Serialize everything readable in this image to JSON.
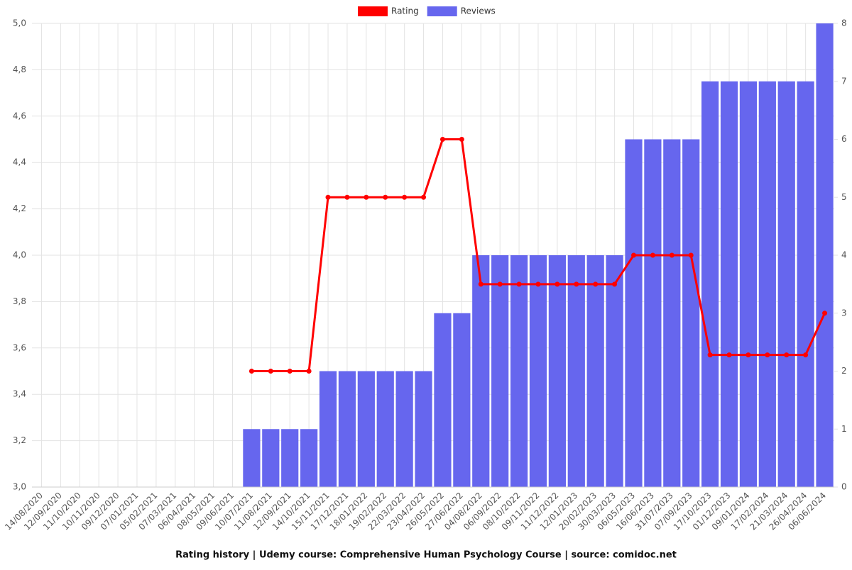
{
  "chart_data": {
    "type": "bar-line",
    "title": "Rating history | Udemy course: Comprehensive Human Psychology Course | source: comidoc.net",
    "categories": [
      "14/08/2020",
      "12/09/2020",
      "11/10/2020",
      "10/11/2020",
      "09/12/2020",
      "07/01/2021",
      "05/02/2021",
      "07/03/2021",
      "06/04/2021",
      "08/05/2021",
      "09/06/2021",
      "10/07/2021",
      "11/08/2021",
      "12/09/2021",
      "14/10/2021",
      "15/11/2021",
      "17/12/2021",
      "18/01/2022",
      "19/02/2022",
      "22/03/2022",
      "23/04/2022",
      "26/05/2022",
      "27/06/2022",
      "04/08/2022",
      "06/09/2022",
      "08/10/2022",
      "09/11/2022",
      "11/12/2022",
      "12/01/2023",
      "20/02/2023",
      "30/03/2023",
      "06/05/2023",
      "16/06/2023",
      "31/07/2023",
      "07/09/2023",
      "17/10/2023",
      "01/12/2023",
      "09/01/2024",
      "17/02/2024",
      "21/03/2024",
      "26/04/2024",
      "06/06/2024"
    ],
    "series": [
      {
        "name": "Rating",
        "color": "#ff0000",
        "kind": "line",
        "values": [
          null,
          null,
          null,
          null,
          null,
          null,
          null,
          null,
          null,
          null,
          null,
          3.5,
          3.5,
          3.5,
          3.5,
          4.25,
          4.25,
          4.25,
          4.25,
          4.25,
          4.25,
          4.5,
          4.5,
          3.875,
          3.875,
          3.875,
          3.875,
          3.875,
          3.875,
          3.875,
          3.875,
          4.0,
          4.0,
          4.0,
          4.0,
          3.57,
          3.57,
          3.57,
          3.57,
          3.57,
          3.57,
          3.75
        ]
      },
      {
        "name": "Reviews",
        "color": "#6666ee",
        "kind": "bar",
        "axis": "y2",
        "values": [
          null,
          null,
          null,
          null,
          null,
          null,
          null,
          null,
          null,
          null,
          null,
          1,
          1,
          1,
          1,
          2,
          2,
          2,
          2,
          2,
          2,
          3,
          3,
          4,
          4,
          4,
          4,
          4,
          4,
          4,
          4,
          6,
          6,
          6,
          6,
          7,
          7,
          7,
          7,
          7,
          7,
          8
        ]
      }
    ],
    "ylim": [
      3,
      5
    ],
    "yticks": [
      {
        "value": 3,
        "label": "3,0"
      },
      {
        "value": 3.2,
        "label": "3,2"
      },
      {
        "value": 3.4,
        "label": "3,4"
      },
      {
        "value": 3.6,
        "label": "3,6"
      },
      {
        "value": 3.8,
        "label": "3,8"
      },
      {
        "value": 4,
        "label": "4,0"
      },
      {
        "value": 4.2,
        "label": "4,2"
      },
      {
        "value": 4.4,
        "label": "4,4"
      },
      {
        "value": 4.6,
        "label": "4,6"
      },
      {
        "value": 4.8,
        "label": "4,8"
      },
      {
        "value": 5,
        "label": "5,0"
      }
    ],
    "y2lim": [
      0,
      8
    ],
    "y2ticks": [
      0,
      1,
      2,
      3,
      4,
      5,
      6,
      7,
      8
    ],
    "grid": true,
    "legend": "top"
  }
}
